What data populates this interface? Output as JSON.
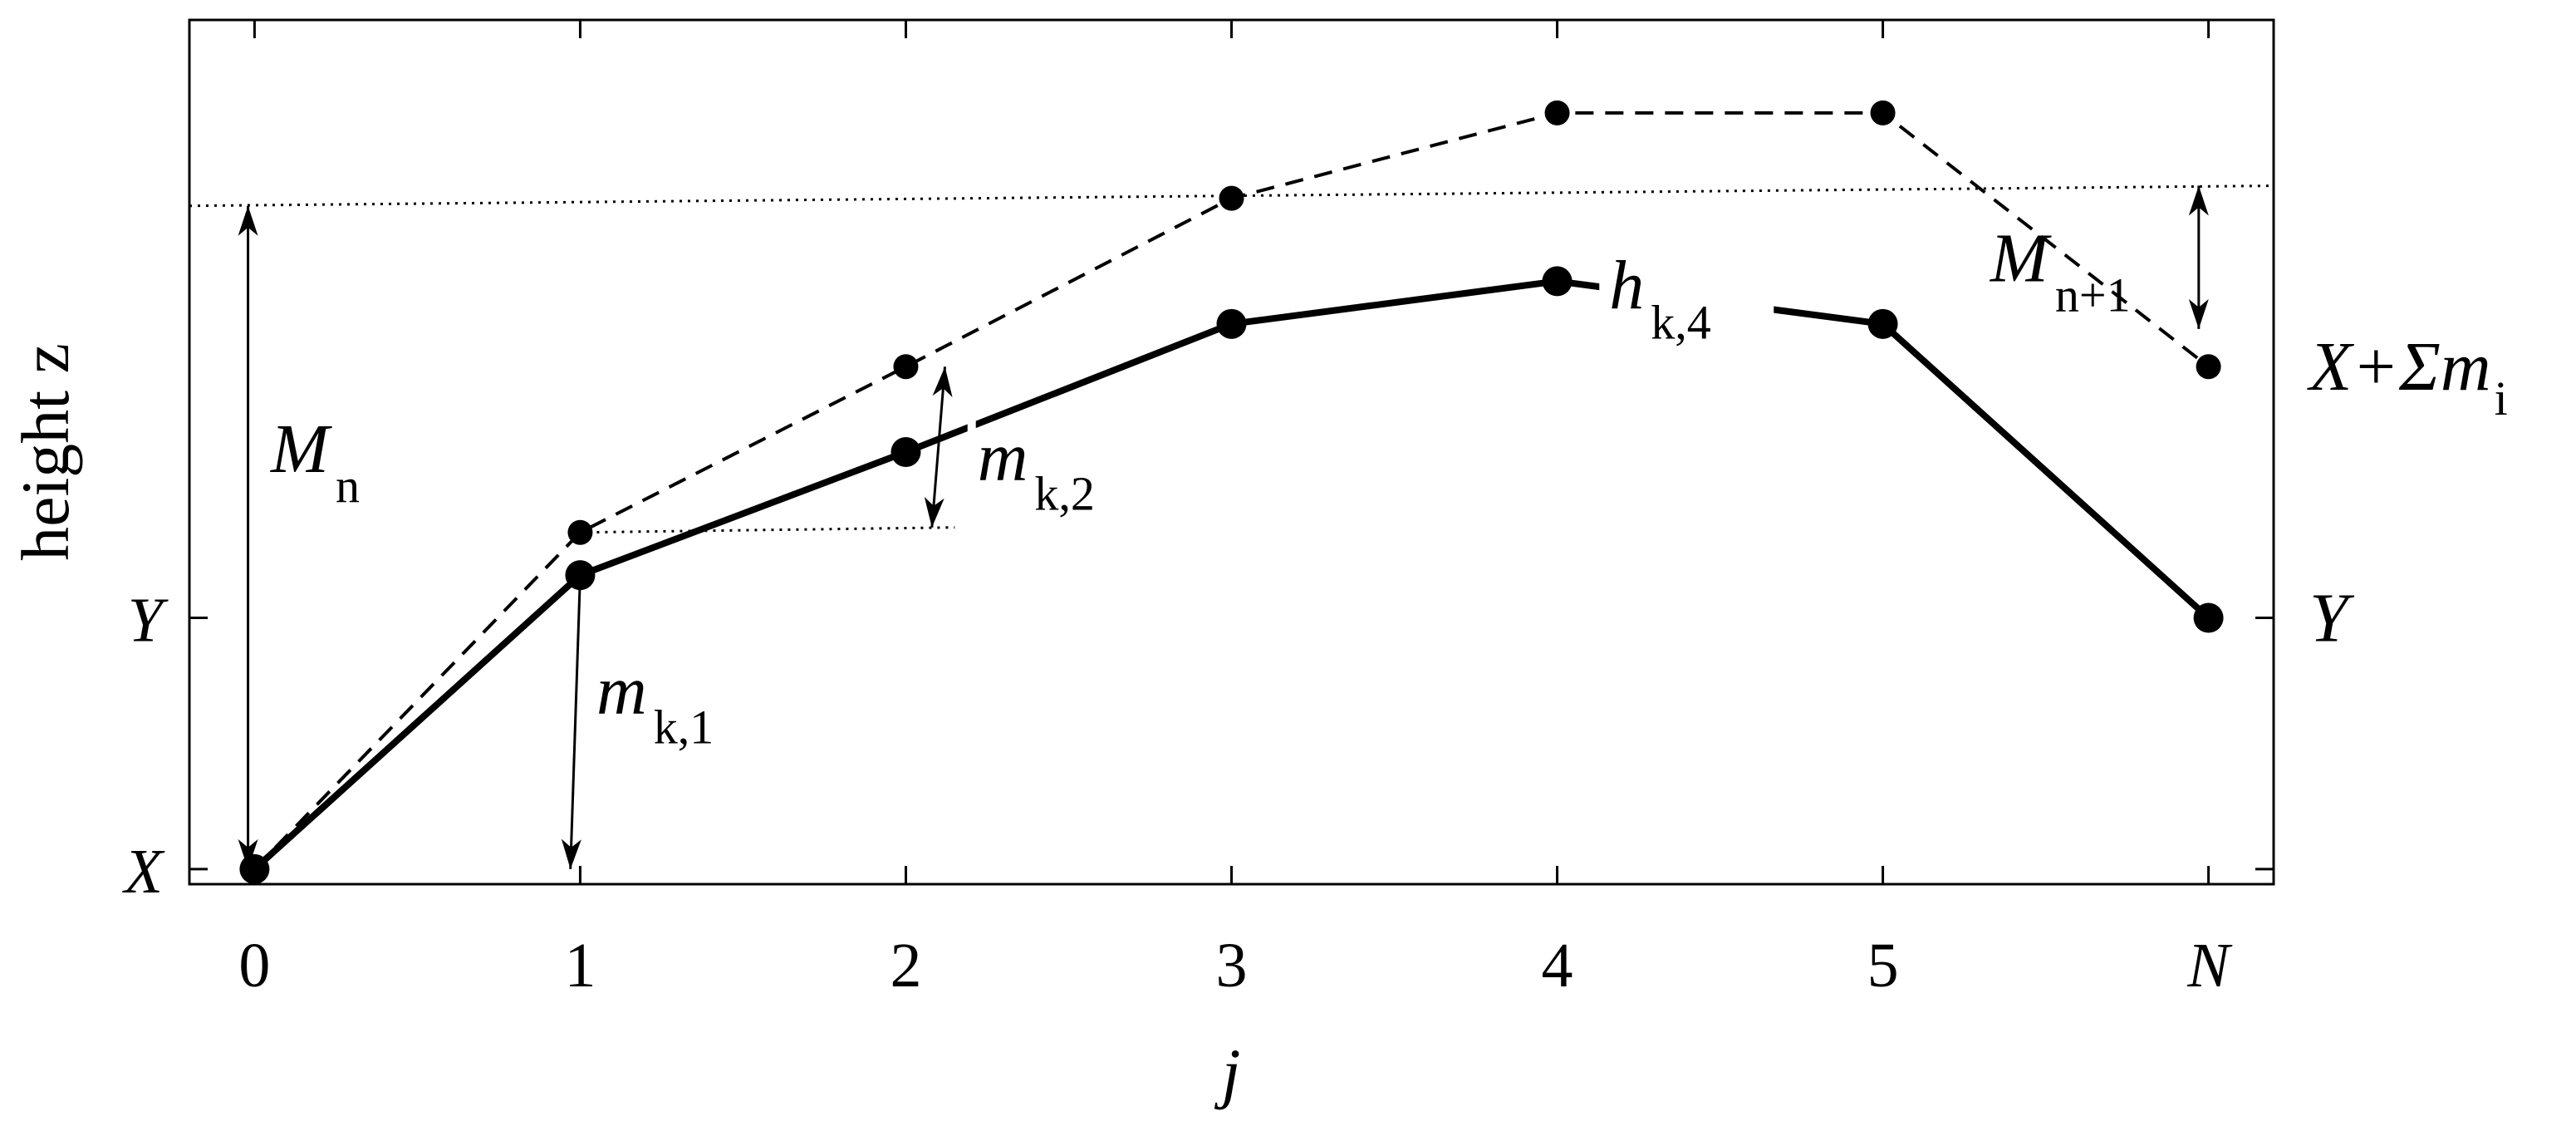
{
  "chart_data": {
    "type": "line",
    "title": "",
    "xlabel": "j",
    "ylabel": "height z",
    "x_tick_labels": [
      "0",
      "1",
      "2",
      "3",
      "4",
      "5",
      "N"
    ],
    "x_ticks": [
      0,
      1,
      2,
      3,
      4,
      5,
      6
    ],
    "y_tick_labels": [
      "X",
      "Y"
    ],
    "y_ticks": [
      0,
      1
    ],
    "right_y_labels": [
      {
        "text": "X+Σm",
        "sub": "i",
        "value": 2
      },
      {
        "text": "Y",
        "sub": "",
        "value": 1
      }
    ],
    "xlim": [
      -0.2,
      6.2
    ],
    "ylim": [
      -0.06,
      3.38
    ],
    "grid": false,
    "legend": "none",
    "series": [
      {
        "style": "solid",
        "x": [
          0,
          1,
          2,
          3,
          4,
          5,
          6
        ],
        "y": [
          0,
          1.17,
          1.66,
          2.17,
          2.34,
          2.17,
          1.0
        ]
      },
      {
        "style": "dashed",
        "x": [
          0,
          1,
          2,
          3,
          4,
          5,
          6
        ],
        "y": [
          0,
          1.34,
          2.0,
          2.67,
          3.01,
          3.01,
          2.0
        ]
      }
    ],
    "reference_lines": [
      {
        "style": "dotted",
        "x": [
          -0.2,
          6.2
        ],
        "y": [
          2.64,
          2.72
        ]
      },
      {
        "style": "dotted",
        "x": [
          1,
          2.15
        ],
        "y": [
          1.34,
          1.36
        ]
      }
    ],
    "annotations": [
      {
        "id": "M_n",
        "text": "M",
        "sub": "n",
        "x": 0.05,
        "y": 1.58
      },
      {
        "id": "m_k1",
        "text": "m",
        "sub": "k,1",
        "x": 1.05,
        "y": 0.62
      },
      {
        "id": "m_k2",
        "text": "m",
        "sub": "k,2",
        "x": 2.22,
        "y": 1.55
      },
      {
        "id": "h_k4",
        "text": "h",
        "sub": "k,4",
        "x": 4.16,
        "y": 2.23
      },
      {
        "id": "M_n1",
        "text": "M",
        "sub": "n+1",
        "x": 5.33,
        "y": 2.34
      }
    ],
    "arrows": [
      {
        "id": "arrow-M-n",
        "x": [
          -0.02,
          -0.02
        ],
        "y": [
          2.64,
          0.0
        ],
        "heads": "both"
      },
      {
        "id": "arrow-m-k1",
        "x": [
          1.0,
          0.97
        ],
        "y": [
          1.17,
          0.0
        ],
        "heads": "end"
      },
      {
        "id": "arrow-m-k2",
        "x": [
          2.12,
          2.08
        ],
        "y": [
          2.0,
          1.36
        ],
        "heads": "both"
      },
      {
        "id": "arrow-M-n1",
        "x": [
          5.97,
          5.97
        ],
        "y": [
          2.72,
          2.15
        ],
        "heads": "both"
      }
    ]
  }
}
